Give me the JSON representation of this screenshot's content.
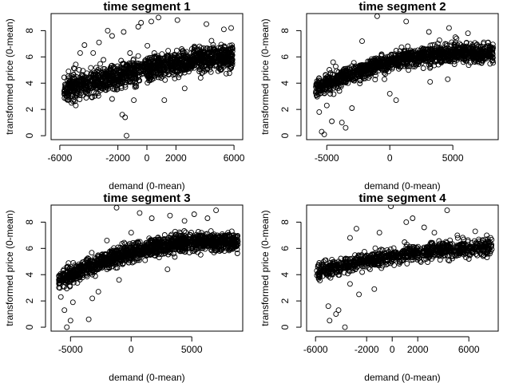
{
  "chart_data": [
    {
      "type": "scatter",
      "title": "time segment 1",
      "xlabel": "demand (0-mean)",
      "ylabel": "transformed price (0-mean)",
      "xlim": [
        -6600,
        6600
      ],
      "ylim": [
        -0.3,
        9.3
      ],
      "xticks": [
        -6000,
        -2000,
        0,
        2000,
        6000
      ],
      "yticks": [
        0,
        2,
        4,
        6,
        8
      ],
      "cloud": {
        "x_min": -5700,
        "x_max": 5900,
        "y_at_x_min": 3.5,
        "y_at_x_max": 6.1,
        "curvature": 0.3,
        "spread": 0.85,
        "count": 1400,
        "seed": 11
      },
      "points": [
        {
          "x": -5700,
          "y": 3.4
        },
        {
          "x": -5400,
          "y": 4.9
        },
        {
          "x": -5200,
          "y": 2.5
        },
        {
          "x": -4900,
          "y": 2.3
        },
        {
          "x": -4600,
          "y": 6.3
        },
        {
          "x": -4300,
          "y": 6.9
        },
        {
          "x": -3700,
          "y": 6.3
        },
        {
          "x": -3300,
          "y": 7.1
        },
        {
          "x": -2700,
          "y": 8.0
        },
        {
          "x": -2400,
          "y": 7.6
        },
        {
          "x": -1600,
          "y": 7.9
        },
        {
          "x": -600,
          "y": 8.3
        },
        {
          "x": 300,
          "y": 8.7
        },
        {
          "x": -400,
          "y": 8.6
        },
        {
          "x": 800,
          "y": 9.0
        },
        {
          "x": 2100,
          "y": 8.8
        },
        {
          "x": 1200,
          "y": 2.7
        },
        {
          "x": -900,
          "y": 2.7
        },
        {
          "x": -1700,
          "y": 1.6
        },
        {
          "x": -1500,
          "y": 1.4
        },
        {
          "x": -1400,
          "y": 0.0
        },
        {
          "x": -2400,
          "y": 2.8
        },
        {
          "x": 2600,
          "y": 3.6
        },
        {
          "x": 3700,
          "y": 4.4
        },
        {
          "x": 4100,
          "y": 8.5
        },
        {
          "x": 5300,
          "y": 8.1
        },
        {
          "x": 5800,
          "y": 8.2
        },
        {
          "x": 5800,
          "y": 5.2
        }
      ]
    },
    {
      "type": "scatter",
      "title": "time segment 2",
      "xlabel": "demand (0-mean)",
      "ylabel": "transformed price (0-mean)",
      "xlim": [
        -6600,
        8600
      ],
      "ylim": [
        -0.3,
        9.3
      ],
      "xticks": [
        -5000,
        0,
        5000
      ],
      "yticks": [
        0,
        2,
        4,
        6,
        8
      ],
      "cloud": {
        "x_min": -5900,
        "x_max": 8200,
        "y_at_x_min": 3.6,
        "y_at_x_max": 6.2,
        "curvature": 0.9,
        "spread": 0.6,
        "count": 1400,
        "seed": 23
      },
      "points": [
        {
          "x": -5800,
          "y": 3.9
        },
        {
          "x": -5600,
          "y": 1.8
        },
        {
          "x": -5400,
          "y": 0.3
        },
        {
          "x": -5200,
          "y": 0.1
        },
        {
          "x": -5000,
          "y": 2.3
        },
        {
          "x": -4600,
          "y": 1.1
        },
        {
          "x": -3800,
          "y": 1.0
        },
        {
          "x": -3500,
          "y": 0.6
        },
        {
          "x": -3000,
          "y": 2.1
        },
        {
          "x": -1000,
          "y": 9.1
        },
        {
          "x": 1300,
          "y": 8.7
        },
        {
          "x": 3100,
          "y": 7.9
        },
        {
          "x": 4700,
          "y": 8.2
        },
        {
          "x": 5200,
          "y": 7.5
        },
        {
          "x": 6200,
          "y": 7.8
        },
        {
          "x": 7800,
          "y": 7.1
        },
        {
          "x": 8200,
          "y": 6.7
        },
        {
          "x": 0,
          "y": 3.2
        },
        {
          "x": 500,
          "y": 2.7
        },
        {
          "x": 3200,
          "y": 4.1
        },
        {
          "x": 4600,
          "y": 4.3
        },
        {
          "x": -2200,
          "y": 7.2
        },
        {
          "x": -4500,
          "y": 5.6
        },
        {
          "x": 6800,
          "y": 5.9
        }
      ]
    },
    {
      "type": "scatter",
      "title": "time segment 3",
      "xlabel": "demand (0-mean)",
      "ylabel": "transformed price (0-mean)",
      "xlim": [
        -6600,
        9200
      ],
      "ylim": [
        -0.3,
        9.3
      ],
      "xticks": [
        -5000,
        0,
        5000
      ],
      "yticks": [
        0,
        2,
        4,
        6,
        8
      ],
      "cloud": {
        "x_min": -6000,
        "x_max": 8800,
        "y_at_x_min": 3.5,
        "y_at_x_max": 6.4,
        "curvature": 0.9,
        "spread": 0.6,
        "count": 1500,
        "seed": 37
      },
      "points": [
        {
          "x": -5800,
          "y": 2.3
        },
        {
          "x": -5500,
          "y": 1.3
        },
        {
          "x": -5300,
          "y": 0.0
        },
        {
          "x": -5000,
          "y": 0.5
        },
        {
          "x": -4800,
          "y": 1.9
        },
        {
          "x": -3500,
          "y": 0.6
        },
        {
          "x": -3200,
          "y": 2.2
        },
        {
          "x": -2700,
          "y": 2.7
        },
        {
          "x": -1000,
          "y": 3.6
        },
        {
          "x": -2000,
          "y": 6.6
        },
        {
          "x": -1200,
          "y": 9.1
        },
        {
          "x": 0,
          "y": 7.2
        },
        {
          "x": 700,
          "y": 8.7
        },
        {
          "x": 1700,
          "y": 8.3
        },
        {
          "x": 3200,
          "y": 8.5
        },
        {
          "x": 4400,
          "y": 8.1
        },
        {
          "x": 5200,
          "y": 8.6
        },
        {
          "x": 6300,
          "y": 8.3
        },
        {
          "x": 7000,
          "y": 8.9
        },
        {
          "x": 8300,
          "y": 7.3
        },
        {
          "x": 8800,
          "y": 6.3
        },
        {
          "x": 3000,
          "y": 4.4
        },
        {
          "x": -4200,
          "y": 4.7
        },
        {
          "x": 7700,
          "y": 5.8
        }
      ]
    },
    {
      "type": "scatter",
      "title": "time segment 4",
      "xlabel": "demand (0-mean)",
      "ylabel": "transformed price (0-mean)",
      "xlim": [
        -6700,
        8300
      ],
      "ylim": [
        -0.3,
        9.3
      ],
      "xticks": [
        -6000,
        -2000,
        0,
        2000,
        6000
      ],
      "yticks": [
        0,
        2,
        4,
        6,
        8
      ],
      "cloud": {
        "x_min": -5900,
        "x_max": 7800,
        "y_at_x_min": 4.2,
        "y_at_x_max": 6.1,
        "curvature": 0.5,
        "spread": 0.55,
        "count": 900,
        "seed": 53
      },
      "points": [
        {
          "x": -5900,
          "y": 4.3
        },
        {
          "x": -5200,
          "y": 5.1
        },
        {
          "x": -5000,
          "y": 1.6
        },
        {
          "x": -4900,
          "y": 0.5
        },
        {
          "x": -4400,
          "y": 1.0
        },
        {
          "x": -4200,
          "y": 1.3
        },
        {
          "x": -3700,
          "y": 0.0
        },
        {
          "x": -3300,
          "y": 3.3
        },
        {
          "x": -2600,
          "y": 2.5
        },
        {
          "x": -1400,
          "y": 2.9
        },
        {
          "x": -1000,
          "y": 7.2
        },
        {
          "x": -2800,
          "y": 7.5
        },
        {
          "x": -3300,
          "y": 6.8
        },
        {
          "x": -100,
          "y": 9.2
        },
        {
          "x": 1100,
          "y": 8.0
        },
        {
          "x": 1600,
          "y": 8.3
        },
        {
          "x": 2500,
          "y": 7.6
        },
        {
          "x": 3300,
          "y": 7.2
        },
        {
          "x": 4300,
          "y": 8.9
        },
        {
          "x": 5100,
          "y": 7.0
        },
        {
          "x": 6500,
          "y": 7.3
        },
        {
          "x": 7400,
          "y": 7.0
        },
        {
          "x": 7700,
          "y": 6.8
        },
        {
          "x": 6000,
          "y": 5.2
        }
      ]
    }
  ]
}
